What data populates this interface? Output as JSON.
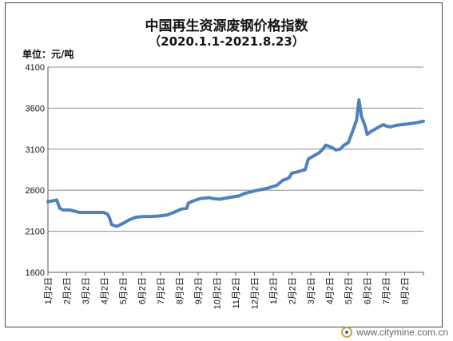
{
  "chart_data": {
    "type": "line",
    "title": "中国再生资源废钢价格指数",
    "subtitle": "（2020.1.1-2021.8.23）",
    "ylabel": "单位：元/吨",
    "xlabel": "",
    "ylim": [
      1600,
      4100
    ],
    "yticks": [
      1600,
      2100,
      2600,
      3100,
      3600,
      4100
    ],
    "x_tick_labels": [
      "1月2日",
      "2月2日",
      "3月2日",
      "4月2日",
      "5月2日",
      "6月2日",
      "7月2日",
      "8月2日",
      "9月2日",
      "10月2日",
      "11月2日",
      "12月2日",
      "1月2日",
      "2月2日",
      "3月2日",
      "4月2日",
      "5月2日",
      "6月2日",
      "7月2日",
      "8月2日"
    ],
    "grid": true,
    "series": [
      {
        "color": "#4f81bd",
        "points": [
          [
            "2020-01-01",
            2460
          ],
          [
            "2020-01-15",
            2480
          ],
          [
            "2020-01-20",
            2380
          ],
          [
            "2020-01-25",
            2360
          ],
          [
            "2020-02-05",
            2360
          ],
          [
            "2020-02-15",
            2340
          ],
          [
            "2020-02-20",
            2330
          ],
          [
            "2020-03-10",
            2330
          ],
          [
            "2020-03-30",
            2330
          ],
          [
            "2020-04-05",
            2310
          ],
          [
            "2020-04-08",
            2270
          ],
          [
            "2020-04-12",
            2180
          ],
          [
            "2020-04-20",
            2160
          ],
          [
            "2020-05-01",
            2200
          ],
          [
            "2020-05-10",
            2240
          ],
          [
            "2020-05-20",
            2270
          ],
          [
            "2020-06-01",
            2280
          ],
          [
            "2020-06-15",
            2280
          ],
          [
            "2020-07-01",
            2290
          ],
          [
            "2020-07-10",
            2300
          ],
          [
            "2020-07-20",
            2330
          ],
          [
            "2020-08-01",
            2370
          ],
          [
            "2020-08-10",
            2380
          ],
          [
            "2020-08-12",
            2440
          ],
          [
            "2020-08-20",
            2470
          ],
          [
            "2020-09-01",
            2500
          ],
          [
            "2020-09-15",
            2510
          ],
          [
            "2020-09-20",
            2500
          ],
          [
            "2020-10-01",
            2490
          ],
          [
            "2020-10-15",
            2510
          ],
          [
            "2020-11-01",
            2530
          ],
          [
            "2020-11-10",
            2560
          ],
          [
            "2020-11-20",
            2580
          ],
          [
            "2020-12-01",
            2600
          ],
          [
            "2020-12-15",
            2620
          ],
          [
            "2021-01-01",
            2660
          ],
          [
            "2021-01-10",
            2720
          ],
          [
            "2021-01-20",
            2750
          ],
          [
            "2021-01-25",
            2810
          ],
          [
            "2021-02-01",
            2820
          ],
          [
            "2021-02-10",
            2840
          ],
          [
            "2021-02-15",
            2850
          ],
          [
            "2021-02-20",
            2980
          ],
          [
            "2021-03-01",
            3020
          ],
          [
            "2021-03-10",
            3060
          ],
          [
            "2021-03-15",
            3100
          ],
          [
            "2021-03-20",
            3150
          ],
          [
            "2021-03-30",
            3120
          ],
          [
            "2021-04-05",
            3090
          ],
          [
            "2021-04-12",
            3100
          ],
          [
            "2021-04-18",
            3150
          ],
          [
            "2021-04-25",
            3180
          ],
          [
            "2021-05-01",
            3300
          ],
          [
            "2021-05-08",
            3450
          ],
          [
            "2021-05-12",
            3700
          ],
          [
            "2021-05-14",
            3600
          ],
          [
            "2021-05-16",
            3500
          ],
          [
            "2021-05-22",
            3380
          ],
          [
            "2021-05-25",
            3280
          ],
          [
            "2021-06-01",
            3320
          ],
          [
            "2021-06-08",
            3350
          ],
          [
            "2021-06-15",
            3380
          ],
          [
            "2021-06-20",
            3400
          ],
          [
            "2021-06-25",
            3380
          ],
          [
            "2021-07-01",
            3370
          ],
          [
            "2021-07-10",
            3390
          ],
          [
            "2021-07-20",
            3400
          ],
          [
            "2021-08-01",
            3410
          ],
          [
            "2021-08-10",
            3420
          ],
          [
            "2021-08-23",
            3440
          ]
        ]
      }
    ]
  },
  "watermark": "www.citymine.com.cn",
  "watermark_icon": "citymine-logo-icon"
}
